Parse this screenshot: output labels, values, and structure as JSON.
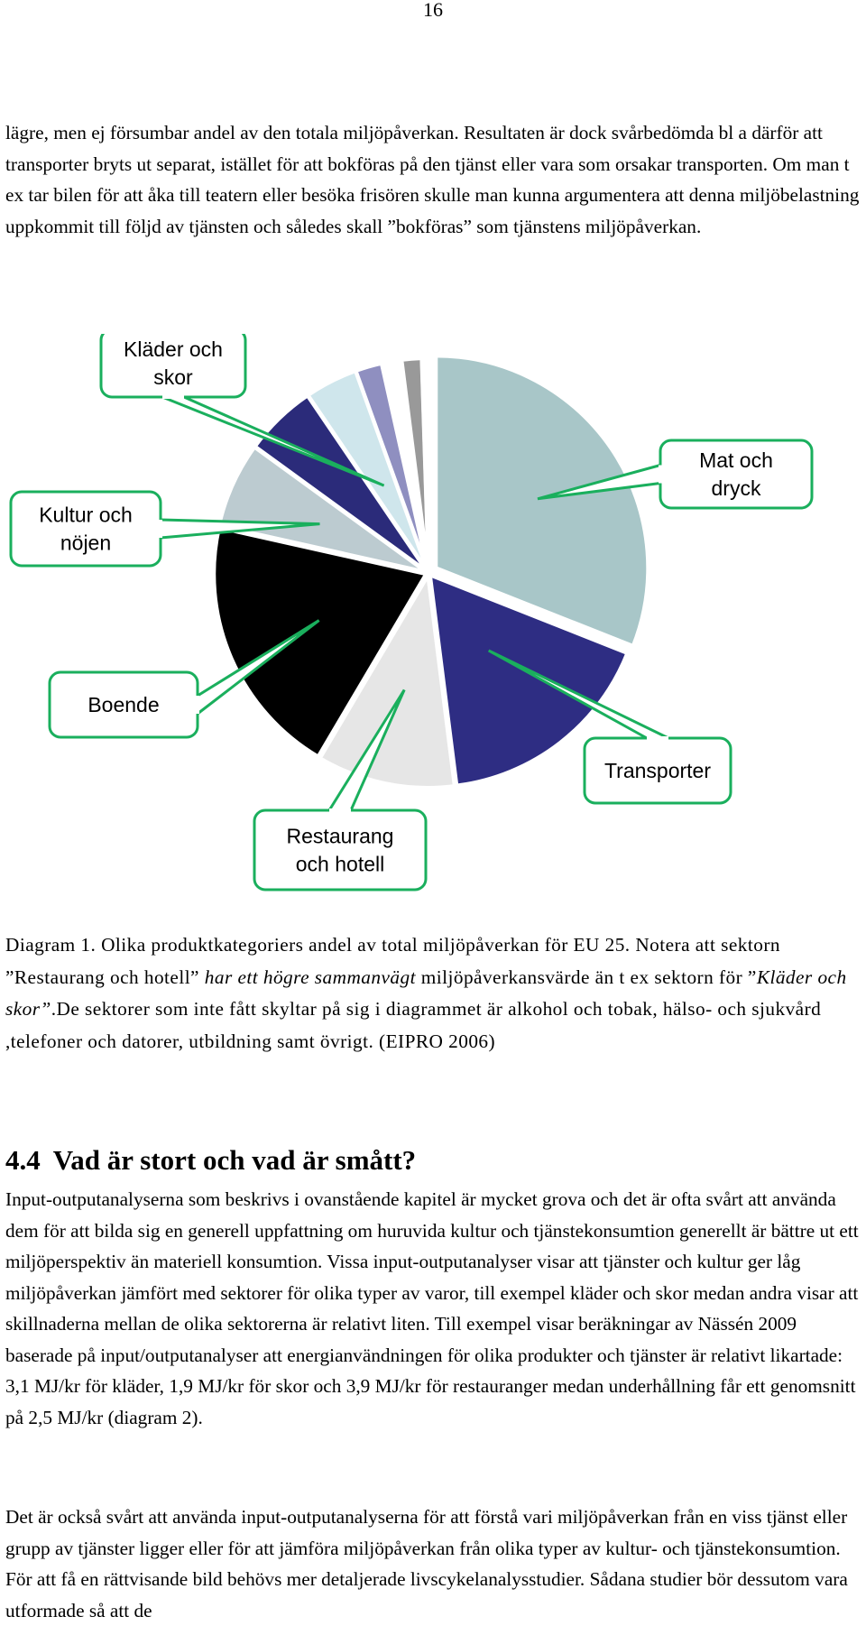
{
  "page_number": "16",
  "paragraph_1": "lägre, men ej försumbar andel av den totala miljöpåverkan. Resultaten är dock svårbedömda bl a därför att transporter bryts ut separat, istället för att bokföras på den tjänst eller vara som orsakar transporten. Om man t ex tar bilen för att åka till teatern eller besöka frisören skulle man kunna argumentera att denna miljöbelastning uppkommit till följd av tjänsten och således skall ”bokföras” som tjänstens miljöpåverkan.",
  "chart_data": {
    "type": "pie",
    "title": "",
    "slices": [
      {
        "label": "Mat och dryck",
        "value": 31.0,
        "color": "#a8c6c8"
      },
      {
        "label": "Transporter",
        "value": 17.0,
        "color": "#2e2d83"
      },
      {
        "label": "Restaurang och hotell",
        "value": 10.5,
        "color": "#e6e6e6"
      },
      {
        "label": "Boende",
        "value": 20.0,
        "color": "#000000"
      },
      {
        "label": "Kultur och nöjen",
        "value": 6.5,
        "color": "#bccbd0"
      },
      {
        "label": "",
        "value": 5.5,
        "color": "#2b2b7a"
      },
      {
        "label": "Kläder och skor",
        "value": 4.0,
        "color": "#cfe6ec"
      },
      {
        "label": "",
        "value": 2.0,
        "color": "#8f8fc0"
      },
      {
        "label": "",
        "value": 1.5,
        "color": "#ffffff"
      },
      {
        "label": "",
        "value": 1.5,
        "color": "#999999"
      },
      {
        "label": "",
        "value": 0.5,
        "color": "#ffffff"
      }
    ],
    "callout_lines": [
      {
        "slice": "Kläder och skor",
        "lines": [
          "Kläder och",
          "skor"
        ]
      },
      {
        "slice": "Mat och dryck",
        "lines": [
          "Mat och",
          "dryck"
        ]
      },
      {
        "slice": "Kultur och nöjen",
        "lines": [
          "Kultur och",
          "nöjen"
        ]
      },
      {
        "slice": "Boende",
        "lines": [
          "Boende"
        ]
      },
      {
        "slice": "Transporter",
        "lines": [
          "Transporter"
        ]
      },
      {
        "slice": "Restaurang och hotell",
        "lines": [
          "Restaurang",
          "och hotell"
        ]
      }
    ],
    "callout_color": "#1aaf5d",
    "legend": "none"
  },
  "caption": {
    "part1": "Diagram 1. Olika produktkategoriers andel av total miljöpåverkan för EU 25. Notera att sektorn ”Restaurang och hotell”",
    "italic1": " har ett högre sammanvägt",
    "part2": " miljöpåverkansvärde än t ex sektorn för ”",
    "italic2": "Kläder och skor”",
    "part3": ".De sektorer som inte fått skyltar på sig i diagrammet är alkohol och tobak, hälso- och sjukvård ,telefoner och datorer, utbildning samt övrigt. (EIPRO 2006)"
  },
  "heading": {
    "number": "4.4",
    "title": "Vad är stort och vad är smått?"
  },
  "paragraph_2": "Input-outputanalyserna som beskrivs i ovanstående kapitel är mycket grova och det är ofta svårt att använda dem för att bilda sig en generell uppfattning om huruvida kultur och tjänstekonsumtion generellt är bättre ut ett miljöperspektiv än materiell konsumtion. Vissa input-outputanalyser visar att tjänster och kultur ger låg miljöpåverkan jämfört med sektorer för olika typer av varor, till exempel kläder och skor medan andra visar att skillnaderna mellan de olika sektorerna är relativt liten. Till exempel visar beräkningar av Nässén 2009 baserade på input/outputanalyser att energianvändningen för olika produkter och tjänster är relativt likartade: 3,1 MJ/kr för kläder, 1,9 MJ/kr för skor och 3,9 MJ/kr för restauranger medan underhållning får ett genomsnitt på 2,5 MJ/kr (diagram 2).",
  "paragraph_3": "Det är också svårt att använda input-outputanalyserna för att förstå vari miljöpåverkan från en viss tjänst eller grupp av tjänster ligger eller för att jämföra miljöpåverkan från olika typer av kultur- och tjänstekonsumtion. För att få en rättvisande bild behövs mer detaljerade livscykelanalysstudier. Sådana studier bör dessutom vara utformade så att de"
}
